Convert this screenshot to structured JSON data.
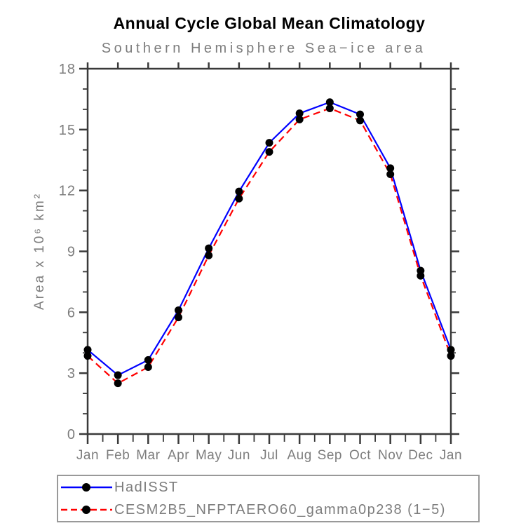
{
  "chart_data": {
    "type": "line",
    "title": "Annual Cycle Global Mean Climatology",
    "subtitle": "Southern Hemisphere Sea−ice area",
    "ylabel": "Area x 10⁶ km²",
    "x_labels": [
      "Jan",
      "Feb",
      "Mar",
      "Apr",
      "May",
      "Jun",
      "Jul",
      "Aug",
      "Sep",
      "Oct",
      "Nov",
      "Dec",
      "Jan"
    ],
    "y_ticks": [
      0,
      3,
      6,
      9,
      12,
      15,
      18
    ],
    "y_minor_step": 1,
    "ylim": [
      0,
      18
    ],
    "grid": false,
    "legend_position": "bottom",
    "series": [
      {
        "name": "HadISST",
        "color": "#0000ff",
        "line_style": "solid",
        "marker": "circle",
        "marker_color": "#000000",
        "values": [
          4.15,
          2.9,
          3.65,
          6.1,
          9.15,
          11.95,
          14.35,
          15.8,
          16.35,
          15.75,
          13.1,
          8.05,
          4.15
        ]
      },
      {
        "name": "CESM2B5_NFPTAERO60_gamma0p238 (1−5)",
        "color": "#ff0000",
        "line_style": "dashed",
        "marker": "circle",
        "marker_color": "#000000",
        "values": [
          3.85,
          2.5,
          3.3,
          5.75,
          8.8,
          11.6,
          13.9,
          15.5,
          16.05,
          15.45,
          12.8,
          7.8,
          3.85
        ]
      }
    ]
  },
  "colors": {
    "axis": "#3a3a3a",
    "labels": "#7d7d7d",
    "title": "#000000",
    "background": "#ffffff",
    "legend_border": "#999999"
  }
}
